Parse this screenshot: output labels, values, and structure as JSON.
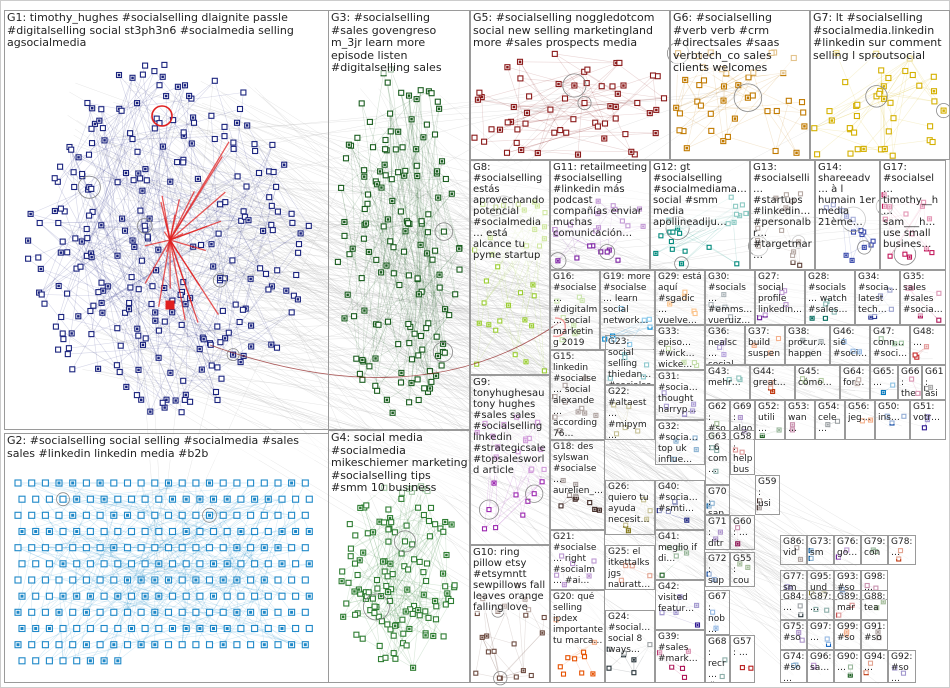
{
  "graph_title": "",
  "palette": {
    "G1": "#1a237e",
    "G2": "#1e88c8",
    "G3": "#1b5e20",
    "G4": "#2e7d32",
    "G5": "#8b1a1a",
    "G6": "#c17a00",
    "G7": "#d4b000",
    "G8": "#9acd32",
    "edge": "#b5b5b5",
    "highlight": "#e02020",
    "border": "#9a9a9a"
  },
  "groups": [
    {
      "id": "G1",
      "label": "G1: timothy_hughes #socialselling dlaignite passle #digitalselling social st3ph3n6 #socialmedia selling agsocialmedia",
      "color": "#1a237e"
    },
    {
      "id": "G2",
      "label": "G2: #socialselling social selling #socialmedia #sales sales #linkedin linkedin media #b2b",
      "color": "#1e88c8"
    },
    {
      "id": "G3",
      "label": "G3: #socialselling #sales govengreso m_3jr learn more episode listen #digitalselling sales",
      "color": "#1b5e20"
    },
    {
      "id": "G4",
      "label": "G4: social media #socialmedia mikeschiemer marketing #socialselling tips #smm 10 business",
      "color": "#2e7d32"
    },
    {
      "id": "G5",
      "label": "G5: #socialselling noggledotcom social new selling marketingland more #sales prospects media",
      "color": "#8b1a1a"
    },
    {
      "id": "G6",
      "label": "G6: #socialselling #verb verb #crm #directsales #saas verbtech_co sales clients welcomes",
      "color": "#c17a00"
    },
    {
      "id": "G7",
      "label": "G7: lt #socialselling #socialmedia.linkedin #linkedin sur comment selling l sproutsocial",
      "color": "#d4b000"
    },
    {
      "id": "G8",
      "label": "G8: #socialselling estás aprovechando potencial #socialmedia… está alcance tu pyme startup",
      "color": "#9acd32"
    },
    {
      "id": "G9",
      "label": "G9: tonyhughesau tony hughes #sales sales #socialselling linkedin #strategicsale #topsalesworld article",
      "color": "#9c27b0"
    },
    {
      "id": "G10",
      "label": "G10: ring pillow etsy #etsymntt sewpillows fall leaves orange falling love",
      "color": "#6d4c41"
    },
    {
      "id": "G11",
      "label": "G11: retailmeeting #socialselling #linkedin más podcast compañías enviar muchas comunicación…",
      "color": "#7b1fa2"
    },
    {
      "id": "G12",
      "label": "G12: gt #socialselling #socialmediama… social #smm media apollineadiju…",
      "color": "#00897b"
    },
    {
      "id": "G13",
      "label": "G13: #socialselli… #startups #linkedin… #personalbr… #targetmar…",
      "color": "#5d4037"
    },
    {
      "id": "G14",
      "label": "G14: shareeadv… à l humain 1er media 21ème…",
      "color": "#3949ab"
    },
    {
      "id": "G17",
      "label": "G17: #socialsel… timothy__h… sam___h… use small busines…",
      "color": "#c2185b"
    },
    {
      "id": "G16",
      "label": "G16: #socialse… #digitalm… social marketing 2019 media…",
      "color": "#8bc34a"
    },
    {
      "id": "G19",
      "label": "G19: more #socialse… learn social network…",
      "color": "#0288d1"
    },
    {
      "id": "G29",
      "label": "G29: está aquí #sgadic… vuelve…",
      "color": "#f57c00"
    },
    {
      "id": "G30",
      "label": "G30: #socials… #emms… vueruiz…",
      "color": "#455a64"
    },
    {
      "id": "G27",
      "label": "G27: social profile linkedin…",
      "color": "#6a1b9a"
    },
    {
      "id": "G28",
      "label": "G28: #socials… watch #sales…",
      "color": "#00695c"
    },
    {
      "id": "G34",
      "label": "G34: #socia… latest tech…",
      "color": "#283593"
    },
    {
      "id": "G35",
      "label": "G35: sales #sales #socia…",
      "color": "#ad1457"
    },
    {
      "id": "G15",
      "label": "G15: linkedin #socialse… social alexande… according 76…",
      "color": "#4e342e"
    },
    {
      "id": "G23",
      "label": "G23: social selling thiedan… #socialse…",
      "color": "#00838f"
    },
    {
      "id": "G33",
      "label": "G33: episo… #wick… wicke…",
      "color": "#7cb342"
    },
    {
      "id": "G36",
      "label": "G36: nealsc… social…",
      "color": "#5e35b1"
    },
    {
      "id": "G37",
      "label": "G37: build suspen…",
      "color": "#e65100"
    },
    {
      "id": "G38",
      "label": "G38: procur… happen…",
      "color": "#37474f"
    },
    {
      "id": "G46",
      "label": "G46: sié #soci…",
      "color": "#1565c0"
    },
    {
      "id": "G47",
      "label": "G47: conn… #soci…",
      "color": "#2e7d32"
    },
    {
      "id": "G48",
      "label": "G48: …",
      "color": "#c62828"
    },
    {
      "id": "G22",
      "label": "G22: #altaest… #mipym… #rim2019 d day…",
      "color": "#827717"
    },
    {
      "id": "G31",
      "label": "G31: #socia… thought harryp…",
      "color": "#4527a0"
    },
    {
      "id": "G43",
      "label": "G43: mehr…",
      "color": "#00796b"
    },
    {
      "id": "G44",
      "label": "G44: great…",
      "color": "#bf360c"
    },
    {
      "id": "G45",
      "label": "G45: cómo…",
      "color": "#558b2f"
    },
    {
      "id": "G64",
      "label": "G64: for…",
      "color": "#6d4c41"
    },
    {
      "id": "G65",
      "label": "G65: …",
      "color": "#0277bd"
    },
    {
      "id": "G66",
      "label": "G66: the…",
      "color": "#ad1457"
    },
    {
      "id": "G61",
      "label": "G61: asi…",
      "color": "#424242"
    },
    {
      "id": "G18",
      "label": "G18: des sylswan #socialse… aurelien_…",
      "color": "#3e2723"
    },
    {
      "id": "G32",
      "label": "G32: #socia… top uk influe…",
      "color": "#01579b"
    },
    {
      "id": "G62",
      "label": "G62: #so… des…",
      "color": "#33691e"
    },
    {
      "id": "G69",
      "label": "G69: algo…",
      "color": "#4a148c"
    },
    {
      "id": "G52",
      "label": "G52: utili…",
      "color": "#1b5e20"
    },
    {
      "id": "G53",
      "label": "G53: wan…",
      "color": "#880e4f"
    },
    {
      "id": "G54",
      "label": "G54: cele…",
      "color": "#263238"
    },
    {
      "id": "G56",
      "label": "G56: jeg…",
      "color": "#e65100"
    },
    {
      "id": "G50",
      "label": "G50: ins…",
      "color": "#0d47a1"
    },
    {
      "id": "G51",
      "label": "G51: votr…",
      "color": "#311b92"
    },
    {
      "id": "G26",
      "label": "G26: quiero tu ayuda necesit…",
      "color": "#827717"
    },
    {
      "id": "G40",
      "label": "G40: #socia… #smti…",
      "color": "#1a237e"
    },
    {
      "id": "G63",
      "label": "G63: 6 com…",
      "color": "#004d40"
    },
    {
      "id": "G58",
      "label": "G58: help bus…",
      "color": "#b71c1c"
    },
    {
      "id": "G59",
      "label": "G59: usi… soci…",
      "color": "#3e2723"
    },
    {
      "id": "G70",
      "label": "G70: sap… con…",
      "color": "#01579b"
    },
    {
      "id": "G21",
      "label": "G21: #socialse… right #socialm… #ai…",
      "color": "#6a1b9a"
    },
    {
      "id": "G25",
      "label": "G25: el itkettalks jgs nauratt…",
      "color": "#bf360c"
    },
    {
      "id": "G41",
      "label": "G41: meglio if di…",
      "color": "#1b5e20"
    },
    {
      "id": "G71",
      "label": "G71: ditre fili…",
      "color": "#4a148c"
    },
    {
      "id": "G60",
      "label": "G60: …",
      "color": "#880e4f"
    },
    {
      "id": "G72",
      "label": "G72: sup… pro…",
      "color": "#0d47a1"
    },
    {
      "id": "G55",
      "label": "G55: cou… we…",
      "color": "#33691e"
    },
    {
      "id": "G20",
      "label": "G20: qué selling ipdex importante tu marca…",
      "color": "#e65100"
    },
    {
      "id": "G24",
      "label": "G24: #social… social 8 ways…",
      "color": "#263238"
    },
    {
      "id": "G42",
      "label": "G42: visited featur…",
      "color": "#311b92"
    },
    {
      "id": "G67",
      "label": "G67: nob… feel…",
      "color": "#1565c0"
    },
    {
      "id": "G39",
      "label": "G39: #sales #mark…",
      "color": "#ad1457"
    },
    {
      "id": "G68",
      "label": "G68: recr… #col…",
      "color": "#004d40"
    },
    {
      "id": "G57",
      "label": "G57: …",
      "color": "#b71c1c"
    },
    {
      "id": "G86",
      "label": "G86: vid…",
      "color": "#4e342e"
    },
    {
      "id": "G73",
      "label": "G73: sm…",
      "color": "#01579b"
    },
    {
      "id": "G76",
      "label": "G76: go…",
      "color": "#6a1b9a"
    },
    {
      "id": "G79",
      "label": "G79: con…",
      "color": "#1b5e20"
    },
    {
      "id": "G78",
      "label": "G78: …",
      "color": "#bf360c"
    },
    {
      "id": "G77",
      "label": "G77: sm…",
      "color": "#311b92"
    },
    {
      "id": "G95",
      "label": "G95: und…",
      "color": "#827717"
    },
    {
      "id": "G93",
      "label": "G93: #so…",
      "color": "#0d47a1"
    },
    {
      "id": "G98",
      "label": "G98: …",
      "color": "#880e4f"
    },
    {
      "id": "G84",
      "label": "G84: …",
      "color": "#263238"
    },
    {
      "id": "G87",
      "label": "G87: …",
      "color": "#004d40"
    },
    {
      "id": "G89",
      "label": "G89: mar…",
      "color": "#b71c1c"
    },
    {
      "id": "G88",
      "label": "G88: tea…",
      "color": "#33691e"
    },
    {
      "id": "G75",
      "label": "G75: #so…",
      "color": "#4a148c"
    },
    {
      "id": "G97",
      "label": "G97: …",
      "color": "#1565c0"
    },
    {
      "id": "G99",
      "label": "G99: #so…",
      "color": "#e65100"
    },
    {
      "id": "G91",
      "label": "G91: #so…",
      "color": "#3e2723"
    },
    {
      "id": "G74",
      "label": "G74: #so…",
      "color": "#01579b"
    },
    {
      "id": "G96",
      "label": "G96: sa…",
      "color": "#6a1b9a"
    },
    {
      "id": "G90",
      "label": "G90: …",
      "color": "#1b5e20"
    },
    {
      "id": "G94",
      "label": "G94: …",
      "color": "#bf360c"
    },
    {
      "id": "G92",
      "label": "G92: #so…",
      "color": "#311b92"
    }
  ]
}
